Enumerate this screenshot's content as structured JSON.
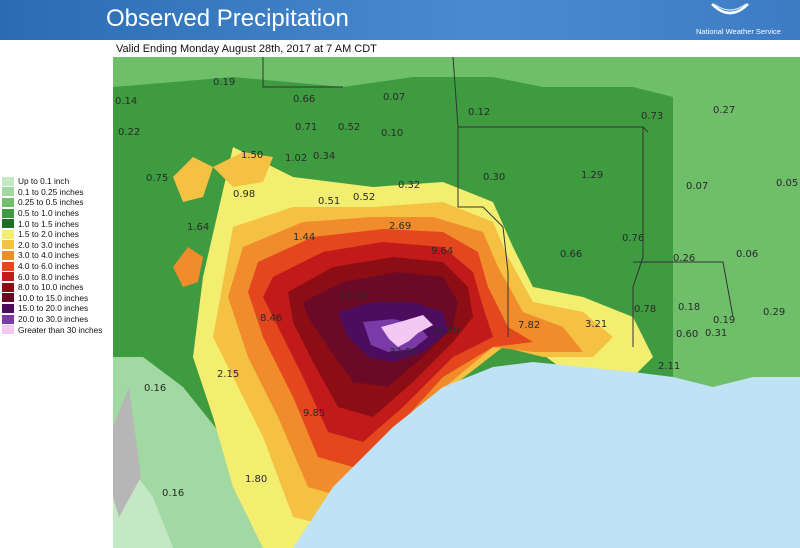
{
  "header": {
    "title": "Observed Precipitation",
    "agency": "National Weather Service",
    "logo_icon": "nws-logo-icon"
  },
  "subtitle": "Valid Ending Monday August 28th, 2017 at 7 AM CDT",
  "legend": [
    {
      "label": "Up to 0.1 inch",
      "color": "#c4e8c4"
    },
    {
      "label": "0.1 to 0.25 inches",
      "color": "#a2d8a2"
    },
    {
      "label": "0.25 to 0.5 inches",
      "color": "#6fbf6a"
    },
    {
      "label": "0.5 to 1.0 inches",
      "color": "#3f9b40"
    },
    {
      "label": "1.0 to 1.5 inches",
      "color": "#1e6e2a"
    },
    {
      "label": "1.5 to 2.0 inches",
      "color": "#f4ee70"
    },
    {
      "label": "2.0 to 3.0 inches",
      "color": "#f5c142"
    },
    {
      "label": "3.0 to 4.0 inches",
      "color": "#f08c2c"
    },
    {
      "label": "4.0 to 6.0 inches",
      "color": "#e4461e"
    },
    {
      "label": "6.0 to 8.0 inches",
      "color": "#c21a1a"
    },
    {
      "label": "8.0 to 10.0 inches",
      "color": "#8c0e14"
    },
    {
      "label": "10.0 to 15.0 inches",
      "color": "#6a0a26"
    },
    {
      "label": "15.0 to 20.0 inches",
      "color": "#4c0d5e"
    },
    {
      "label": "20.0 to 30.0 inches",
      "color": "#7a3aa8"
    },
    {
      "label": "Greater than 30 inches",
      "color": "#f3c8f3"
    }
  ],
  "map_values": [
    "0.14",
    "0.19",
    "0.66",
    "0.07",
    "0.12",
    "0.73",
    "0.27",
    "0.22",
    "0.71",
    "0.52",
    "0.10",
    "1.50",
    "1.02",
    "0.34",
    "0.75",
    "1.29",
    "0.98",
    "0.51",
    "0.52",
    "0.32",
    "0.30",
    "0.07",
    "0.05",
    "1.64",
    "2.69",
    "1.44",
    "9.64",
    "0.76",
    "0.66",
    "0.26",
    "0.06",
    "13.30",
    "0.78",
    "0.18",
    "0.29",
    "8.46",
    "19.39",
    "7.82",
    "3.21",
    "0.19",
    "0.60",
    "0.31",
    "33.57",
    "2.15",
    "2.11",
    "0.16",
    "9.85",
    "1.80",
    "0.16"
  ]
}
